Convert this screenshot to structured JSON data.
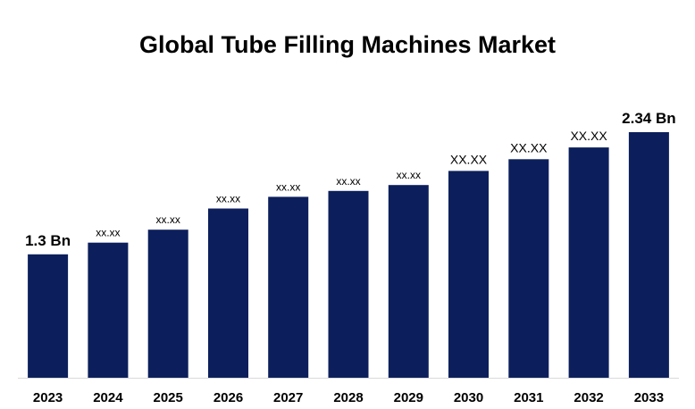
{
  "title": "Global Tube Filling Machines Market",
  "chart_data": {
    "type": "bar",
    "title": "Global Tube Filling Machines Market",
    "xlabel": "",
    "ylabel": "",
    "categories": [
      "2023",
      "2024",
      "2025",
      "2026",
      "2027",
      "2028",
      "2029",
      "2030",
      "2031",
      "2032",
      "2033"
    ],
    "values": [
      1.3,
      1.4,
      1.51,
      1.69,
      1.79,
      1.84,
      1.89,
      2.01,
      2.11,
      2.21,
      2.34
    ],
    "data_labels": [
      "1.3 Bn",
      "xx.xx",
      "xx.xx",
      "xx.xx",
      "xx.xx",
      "xx.xx",
      "xx.xx",
      "XX.XX",
      "XX.XX",
      "XX.XX",
      "2.34 Bn"
    ],
    "ylim": [
      0.25,
      2.4
    ],
    "grid": false,
    "legend": "none",
    "bar_color": "#0c1f5c",
    "axis_color": "#d9d9d9"
  }
}
